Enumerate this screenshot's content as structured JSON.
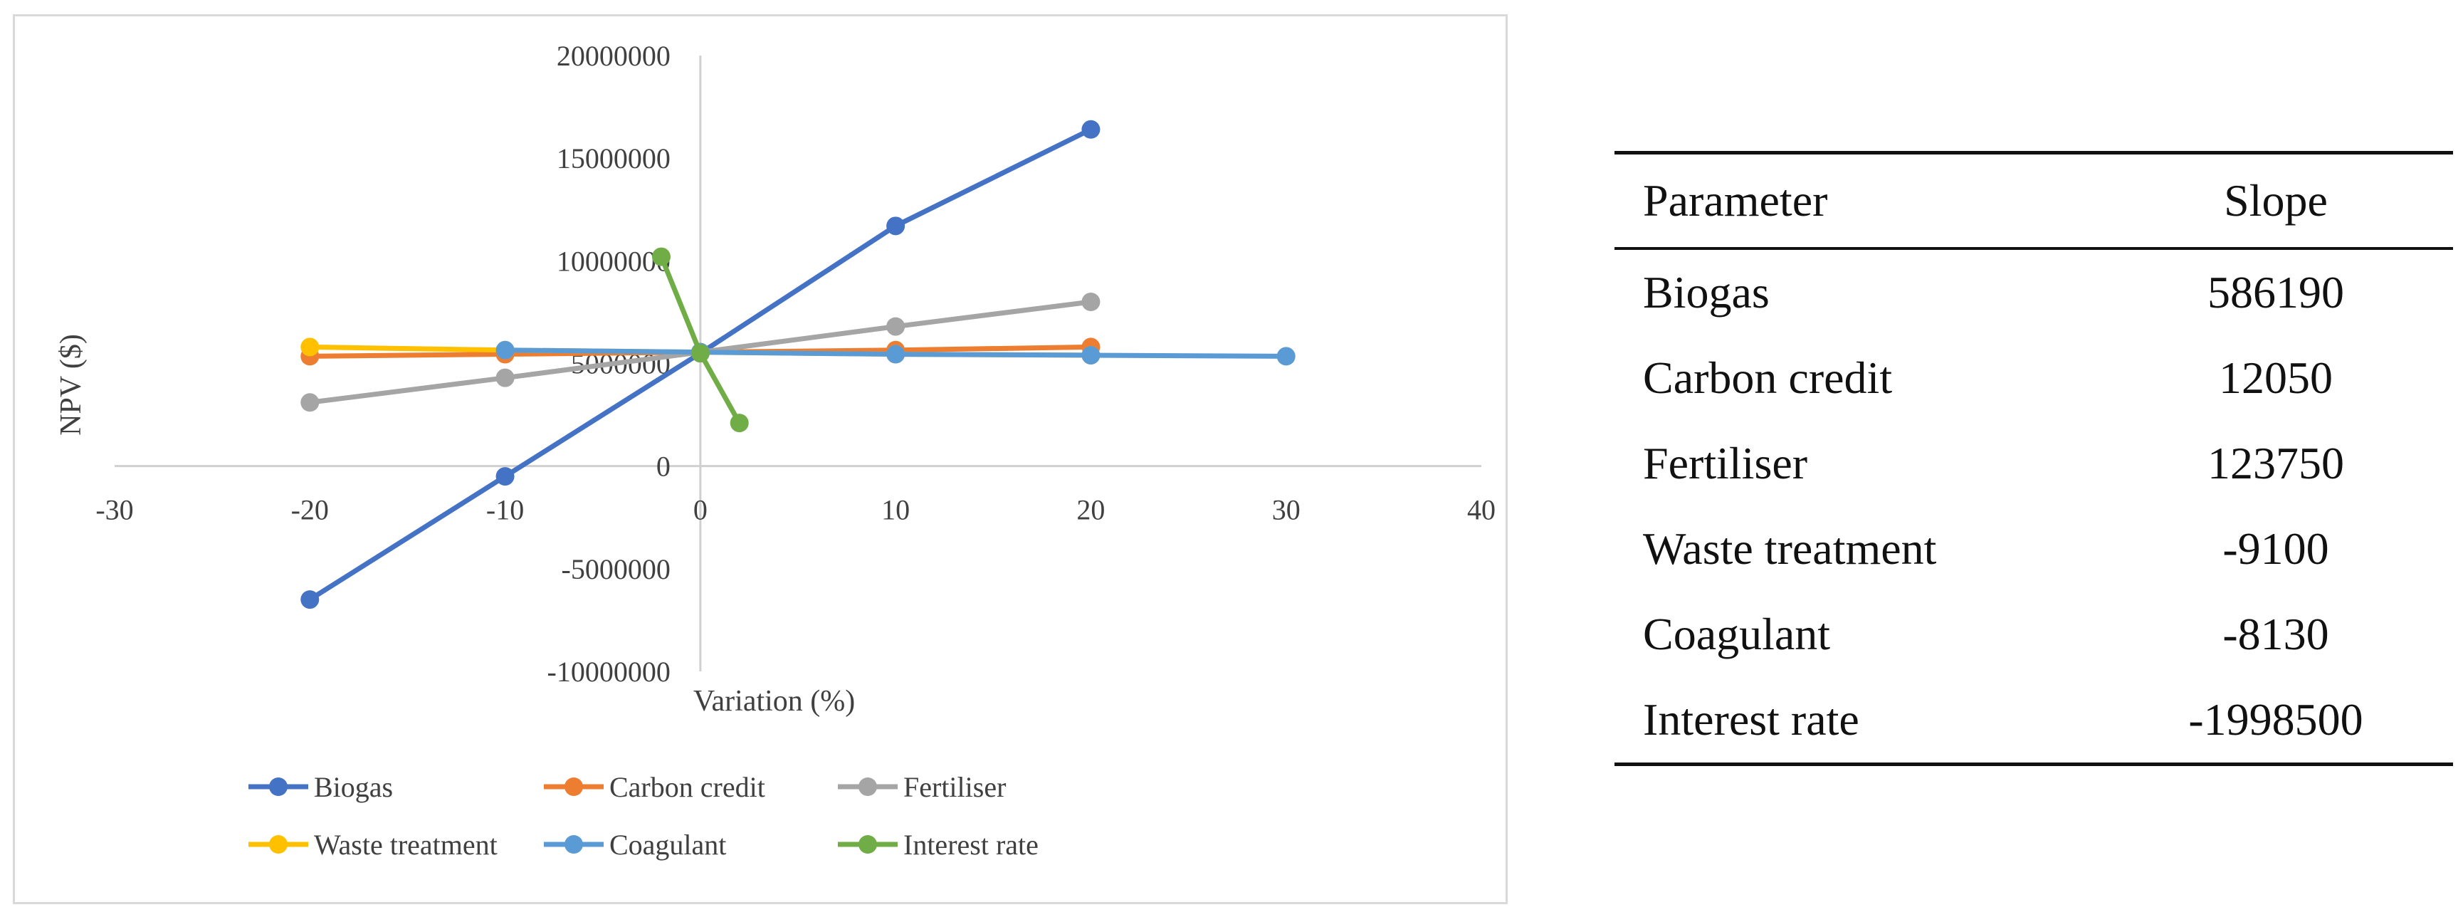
{
  "chart_data": {
    "type": "line",
    "title": "",
    "xlabel": "Variation (%)",
    "ylabel": "NPV ($)",
    "xlim": [
      -30,
      40
    ],
    "ylim": [
      -10000000,
      20000000
    ],
    "x_ticks": [
      -30,
      -20,
      -10,
      0,
      10,
      20,
      30,
      40
    ],
    "y_ticks": [
      -10000000,
      -5000000,
      0,
      5000000,
      10000000,
      15000000,
      20000000
    ],
    "x_tick_labels": [
      "-30",
      "-20",
      "-10",
      "0",
      "10",
      "20",
      "30",
      "40"
    ],
    "y_tick_labels": [
      "-10000000",
      "-5000000",
      "0",
      "5000000",
      "10000000",
      "15000000",
      "20000000"
    ],
    "legend_position": "bottom",
    "series": [
      {
        "name": "Biogas",
        "color": "#4472c4",
        "points": [
          [
            -20,
            -6500000
          ],
          [
            -10,
            -500000
          ],
          [
            0,
            5500000
          ],
          [
            10,
            11700000
          ],
          [
            20,
            16400000
          ]
        ]
      },
      {
        "name": "Carbon credit",
        "color": "#ed7d31",
        "points": [
          [
            -20,
            5350000
          ],
          [
            -10,
            5450000
          ],
          [
            0,
            5550000
          ],
          [
            10,
            5650000
          ],
          [
            20,
            5800000
          ]
        ]
      },
      {
        "name": "Fertiliser",
        "color": "#a5a5a5",
        "points": [
          [
            -20,
            3100000
          ],
          [
            -10,
            4300000
          ],
          [
            0,
            5550000
          ],
          [
            10,
            6800000
          ],
          [
            20,
            8000000
          ]
        ]
      },
      {
        "name": "Waste treatment",
        "color": "#ffc000",
        "points": [
          [
            -20,
            5800000
          ],
          [
            -10,
            5650000
          ],
          [
            0,
            5550000
          ],
          [
            10,
            5450000
          ],
          [
            20,
            5400000
          ]
        ]
      },
      {
        "name": "Coagulant",
        "color": "#5b9bd5",
        "points": [
          [
            -10,
            5650000
          ],
          [
            0,
            5550000
          ],
          [
            10,
            5450000
          ],
          [
            20,
            5400000
          ],
          [
            30,
            5350000
          ]
        ]
      },
      {
        "name": "Interest rate",
        "color": "#70ad47",
        "points": [
          [
            -2,
            10200000
          ],
          [
            0,
            5500000
          ],
          [
            2,
            2100000
          ]
        ]
      }
    ]
  },
  "slope_table": {
    "headers": {
      "parameter": "Parameter",
      "slope": "Slope"
    },
    "rows": [
      {
        "parameter": "Biogas",
        "slope": "586190"
      },
      {
        "parameter": "Carbon credit",
        "slope": "12050"
      },
      {
        "parameter": "Fertiliser",
        "slope": "123750"
      },
      {
        "parameter": "Waste treatment",
        "slope": "-9100"
      },
      {
        "parameter": "Coagulant",
        "slope": "-8130"
      },
      {
        "parameter": "Interest rate",
        "slope": "-1998500"
      }
    ]
  }
}
